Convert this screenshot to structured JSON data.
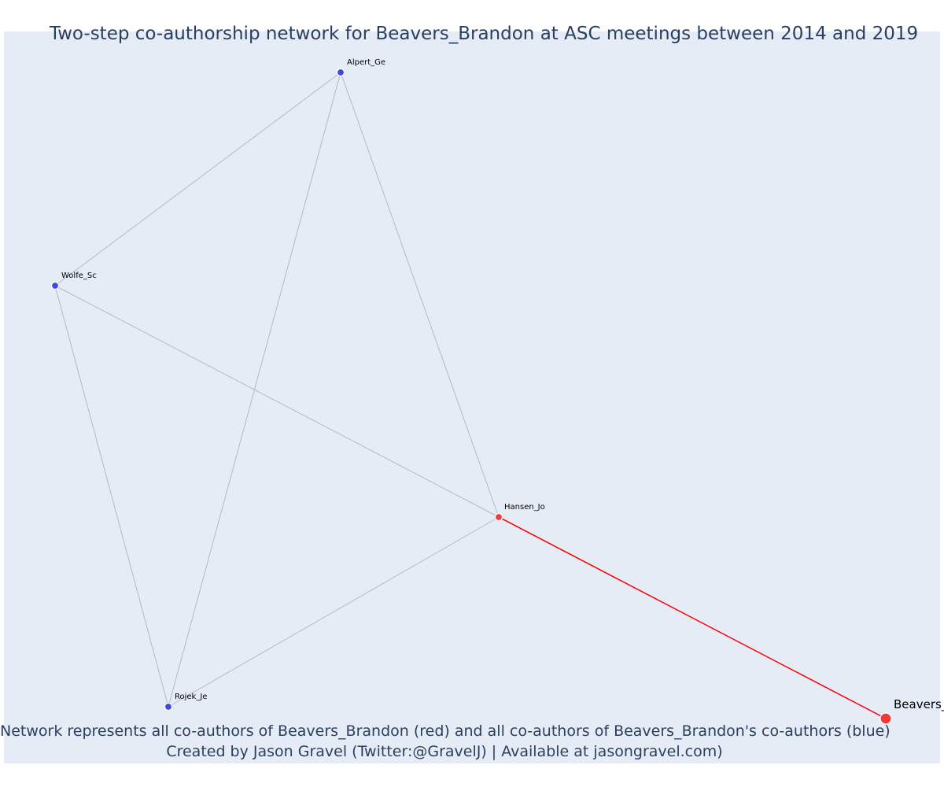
{
  "title": "Two-step co-authorship network for Beavers_Brandon at ASC meetings between 2014 and 2019",
  "footer": {
    "line1": "Network represents all co-authors of Beavers_Brandon (red) and all co-authors of Beavers_Brandon's co-authors (blue)",
    "line2": "Created by Jason Gravel (Twitter:@GravelJ) | Available at jasongravel.com)"
  },
  "colors": {
    "plot_background": "#e5ecf6",
    "text": "#2a3f5f",
    "focal_node": "#ef3a3a",
    "first_step_node": "#ef3a3a",
    "second_step_node": "#3f48e0",
    "focal_edge": "#ff0000",
    "other_edge": "#b4b8c8"
  },
  "nodes": [
    {
      "id": "Beavers_Brandon",
      "label": "Beavers_",
      "role": "focal"
    },
    {
      "id": "Hansen_Jo",
      "label": "Hansen_Jo",
      "role": "first-step"
    },
    {
      "id": "Alpert_Ge",
      "label": "Alpert_Ge",
      "role": "second-step"
    },
    {
      "id": "Wolfe_Sc",
      "label": "Wolfe_Sc",
      "role": "second-step"
    },
    {
      "id": "Rojek_Je",
      "label": "Rojek_Je",
      "role": "second-step"
    }
  ],
  "edges": [
    {
      "source": "Beavers_Brandon",
      "target": "Hansen_Jo",
      "type": "focal"
    },
    {
      "source": "Hansen_Jo",
      "target": "Alpert_Ge",
      "type": "other"
    },
    {
      "source": "Hansen_Jo",
      "target": "Wolfe_Sc",
      "type": "other"
    },
    {
      "source": "Hansen_Jo",
      "target": "Rojek_Je",
      "type": "other"
    },
    {
      "source": "Alpert_Ge",
      "target": "Wolfe_Sc",
      "type": "other"
    },
    {
      "source": "Alpert_Ge",
      "target": "Rojek_Je",
      "type": "other"
    },
    {
      "source": "Wolfe_Sc",
      "target": "Rojek_Je",
      "type": "other"
    }
  ]
}
